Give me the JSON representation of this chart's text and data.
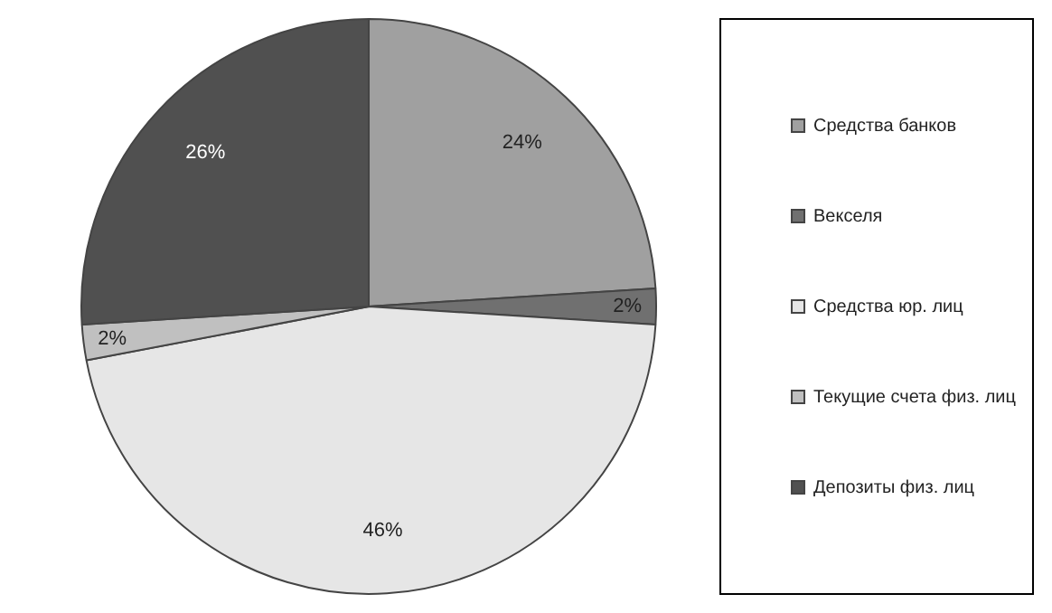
{
  "chart_data": {
    "type": "pie",
    "categories": [
      "Средства банков",
      "Векселя",
      "Средства юр. лиц",
      "Текущие счета физ. лиц",
      "Депозиты физ. лиц"
    ],
    "values": [
      24,
      2,
      46,
      2,
      26
    ],
    "value_labels": [
      "24%",
      "2%",
      "46%",
      "2%",
      "26%"
    ],
    "colors": [
      "#a0a0a0",
      "#707070",
      "#e6e6e6",
      "#c0c0c0",
      "#505050"
    ],
    "legend": "right"
  }
}
